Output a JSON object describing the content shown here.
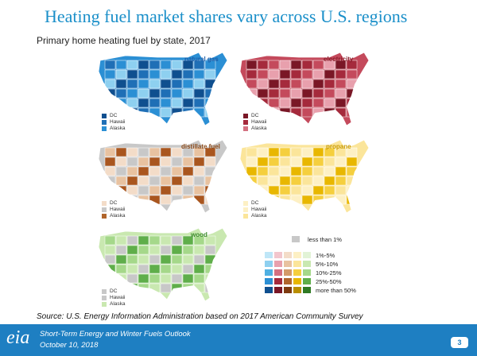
{
  "title": "Heating fuel market shares vary across U.S. regions",
  "subtitle": "Primary home heating fuel by state, 2017",
  "maps": [
    {
      "id": "natural-gas",
      "label": "natural gas",
      "label_color": "#1a5ca8",
      "base": "#2b8fd4",
      "mid": "#1f6fb6",
      "dark": "#0f4f8f",
      "light": "#8ed0f0",
      "insets": [
        "DC",
        "Hawaii",
        "Alaska"
      ],
      "inset_colors": [
        "#0f4f8f",
        "#1f6fb6",
        "#2b8fd4"
      ]
    },
    {
      "id": "electricity",
      "label": "electricity",
      "label_color": "#8a1c2a",
      "base": "#c44a5c",
      "mid": "#a52a3c",
      "dark": "#7a1726",
      "light": "#e8a0ad",
      "insets": [
        "DC",
        "Hawaii",
        "Alaska"
      ],
      "inset_colors": [
        "#7a1726",
        "#a52a3c",
        "#d47080"
      ]
    },
    {
      "id": "distillate-fuel",
      "label": "distillate fuel",
      "label_color": "#8a4a1a",
      "base": "#c8c8c8",
      "mid": "#f3dcc8",
      "dark": "#a9561f",
      "light": "#e8c2a0",
      "insets": [
        "DC",
        "Hawaii",
        "Alaska"
      ],
      "inset_colors": [
        "#f3dcc8",
        "#c8c8c8",
        "#b0652c"
      ]
    },
    {
      "id": "propane",
      "label": "propane",
      "label_color": "#c99a00",
      "base": "#fbe59a",
      "mid": "#f5cf3e",
      "dark": "#e8b700",
      "light": "#fdf0c4",
      "insets": [
        "DC",
        "Hawaii",
        "Alaska"
      ],
      "inset_colors": [
        "#fdf0c4",
        "#fdf0c4",
        "#fbe59a"
      ]
    },
    {
      "id": "wood",
      "label": "wood",
      "label_color": "#3a8a2a",
      "base": "#c9e8b0",
      "mid": "#a5d88a",
      "dark": "#5fae4a",
      "light": "#c8c8c8",
      "insets": [
        "DC",
        "Hawaii",
        "Alaska"
      ],
      "inset_colors": [
        "#c8c8c8",
        "#c8c8c8",
        "#c9e8b0"
      ]
    }
  ],
  "legend": {
    "items": [
      "less than 1%",
      "1%-5%",
      "5%-10%",
      "10%-25%",
      "25%-50%",
      "more than 50%"
    ],
    "less_color": "#c8c8c8",
    "palettes": [
      [
        "#bfe6f7",
        "#8ed0f0",
        "#4fb0e2",
        "#2b8fd4",
        "#0f4f8f"
      ],
      [
        "#f2c6cd",
        "#e8a0ad",
        "#d47080",
        "#a52a3c",
        "#7a1726"
      ],
      [
        "#f3dcc8",
        "#e8c2a0",
        "#d39a68",
        "#b0652c",
        "#7e3a10"
      ],
      [
        "#fdf0c4",
        "#fbe59a",
        "#f5cf3e",
        "#e8b700",
        "#b98e00"
      ],
      [
        "#e2f3d6",
        "#c9e8b0",
        "#a5d88a",
        "#5fae4a",
        "#2f7a24"
      ]
    ]
  },
  "source": "Source: U.S. Energy Information Administration based on 2017 American Community Survey",
  "footer": {
    "logo": "eia",
    "line1": "Short-Term Energy and Winter Fuels Outlook",
    "line2": "October 10, 2018",
    "page": "3"
  }
}
